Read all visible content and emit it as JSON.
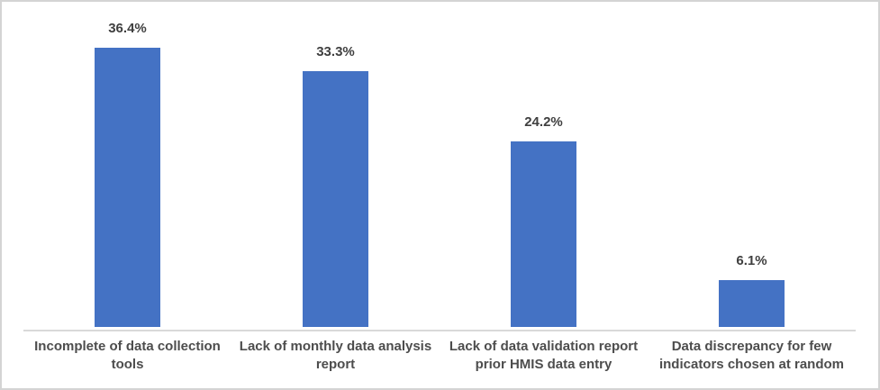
{
  "chart_data": {
    "type": "bar",
    "title": "",
    "xlabel": "",
    "ylabel": "",
    "categories": [
      "Incomplete of data collection tools",
      "Lack of monthly data analysis report",
      "Lack of data validation report prior HMIS data entry",
      "Data discrepancy for few indicators chosen at random"
    ],
    "values": [
      36.4,
      33.3,
      24.2,
      6.1
    ],
    "value_labels": [
      "36.4%",
      "33.3%",
      "24.2%",
      "6.1%"
    ],
    "ylim": [
      0,
      40
    ],
    "grid": false,
    "legend": false,
    "bar_color": "#4472C4",
    "axis_line_color": "#d9d9d9",
    "value_label_color": "#3f3f3f",
    "category_label_color": "#4d4d4d",
    "frame_border_color": "#d4d4d4",
    "background_color": "#ffffff"
  }
}
